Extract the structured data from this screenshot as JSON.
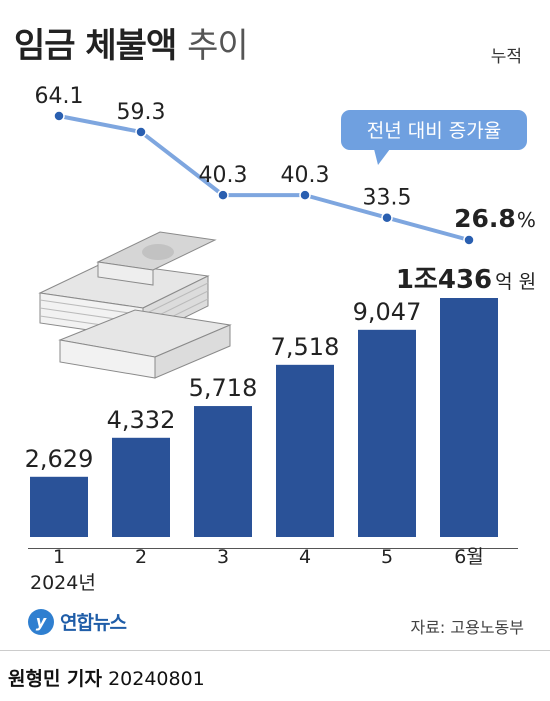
{
  "header": {
    "title_main": "임금 체불액",
    "title_sub": "추이",
    "unit_note": "누적"
  },
  "line_legend": "전년 대비 증가율",
  "source": "자료: 고용노동부",
  "logo": {
    "mark": "y",
    "name": "연합뉴스"
  },
  "footer": {
    "reporter": "원형민 기자",
    "date": "20240801"
  },
  "colors": {
    "bar": "#2a5298",
    "line": "#7ea6df",
    "bubble": "#6fa0e0",
    "text": "#222222"
  },
  "icons": [
    "money-stack-icon"
  ],
  "chart_data": [
    {
      "type": "bar",
      "title": "임금 체불액",
      "categories": [
        "1",
        "2",
        "3",
        "4",
        "5",
        "6월"
      ],
      "x_sublabel": "2024년",
      "values": [
        2629,
        4332,
        5718,
        7518,
        9047,
        10436
      ],
      "value_labels": [
        "2,629",
        "4,332",
        "5,718",
        "7,518",
        "9,047",
        "1조436"
      ],
      "last_label_unit": "억 원",
      "ylim": [
        0,
        10436
      ]
    },
    {
      "type": "line",
      "series": [
        {
          "name": "전년 대비 증가율",
          "values": [
            64.1,
            59.3,
            40.3,
            40.3,
            33.5,
            26.8
          ]
        }
      ],
      "categories": [
        "1",
        "2",
        "3",
        "4",
        "5",
        "6월"
      ],
      "value_labels": [
        "64.1",
        "59.3",
        "40.3",
        "40.3",
        "33.5",
        "26.8"
      ],
      "last_label_unit": "%",
      "ylim": [
        26.8,
        64.1
      ]
    }
  ]
}
